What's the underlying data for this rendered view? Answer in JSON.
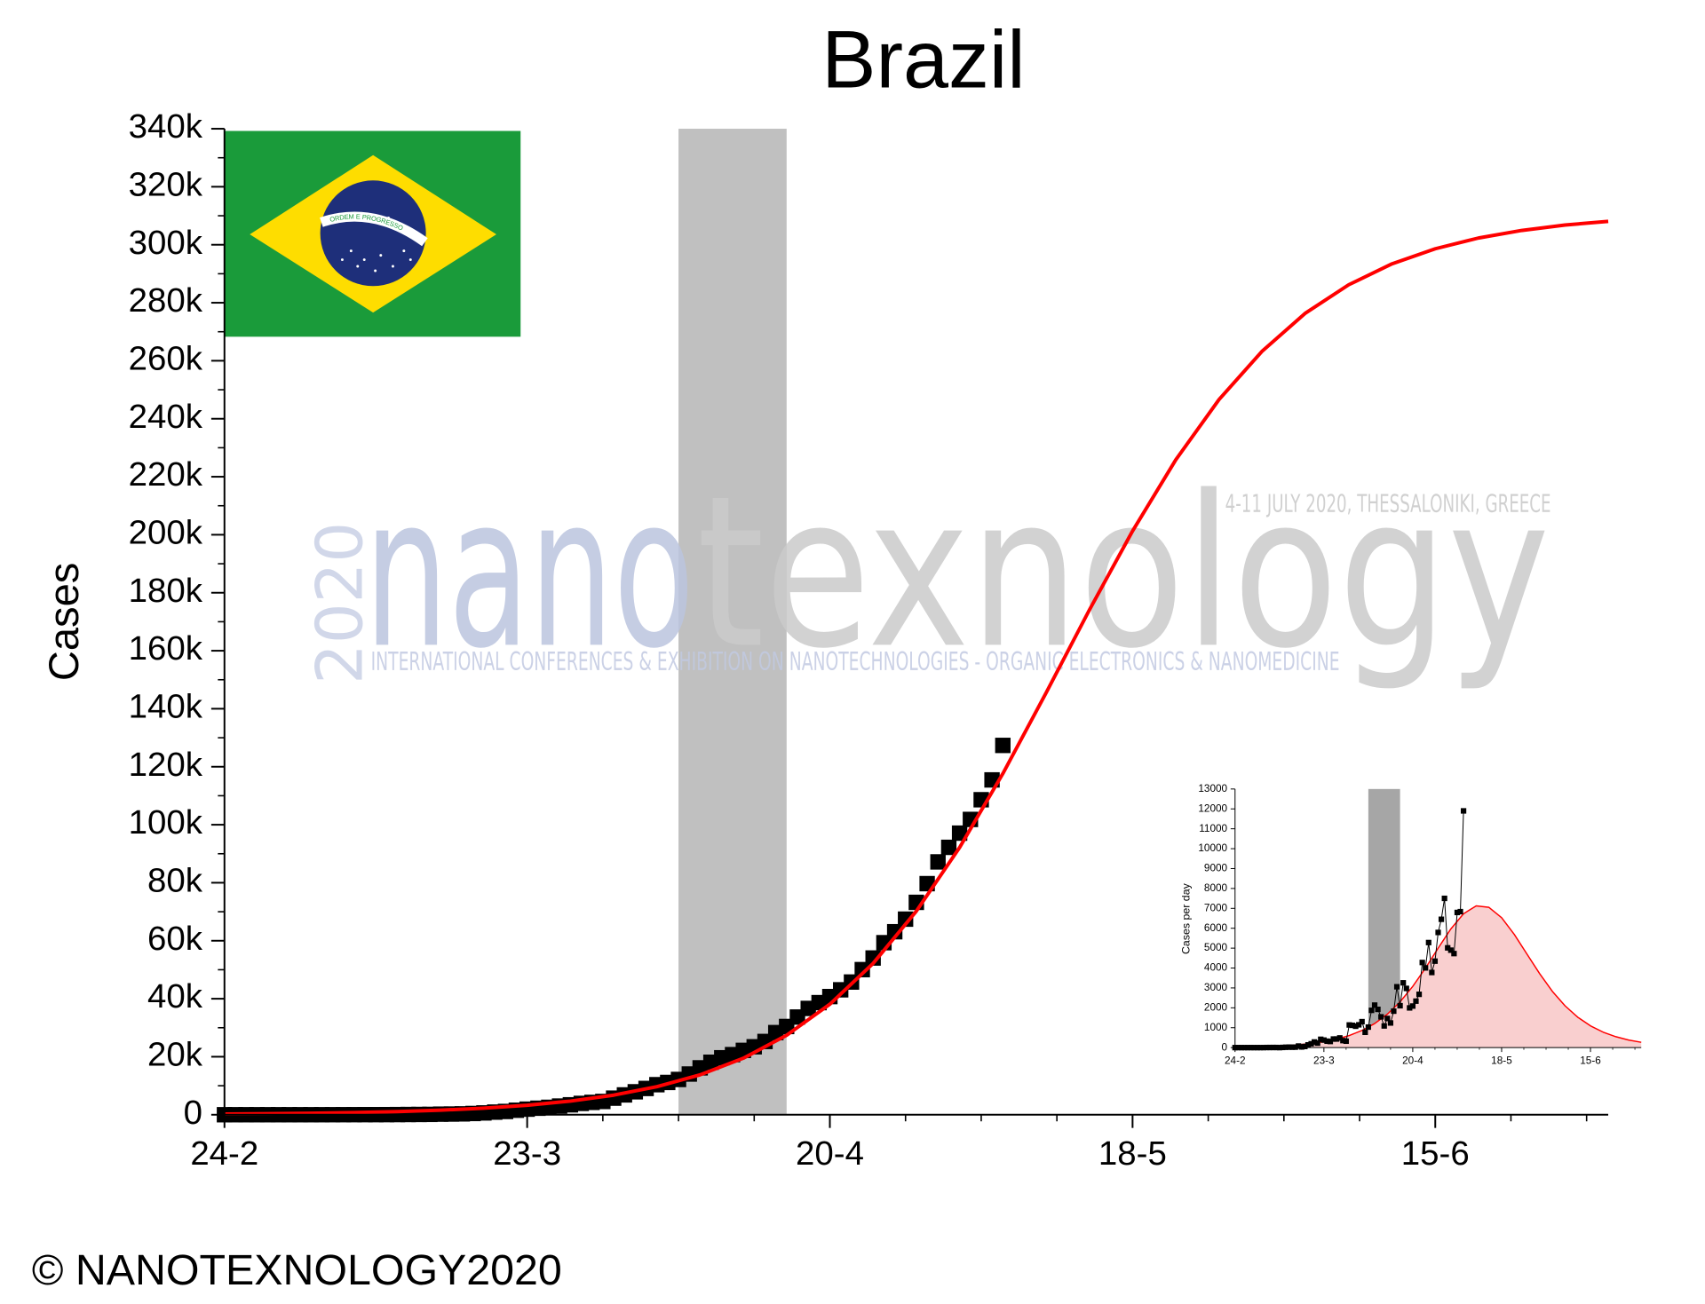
{
  "chart_data": [
    {
      "type": "scatter-fit",
      "title": "Brazil",
      "ylabel": "Cases",
      "xlim": [
        0,
        128
      ],
      "ylim": [
        0,
        340000
      ],
      "xticks": [
        {
          "value": 0,
          "label": "24-2"
        },
        {
          "value": 28,
          "label": "23-3"
        },
        {
          "value": 56,
          "label": "20-4"
        },
        {
          "value": 84,
          "label": "18-5"
        },
        {
          "value": 112,
          "label": "15-6"
        }
      ],
      "xminor": [
        7,
        14,
        21,
        35,
        42,
        49,
        63,
        70,
        77,
        91,
        98,
        105,
        119,
        126
      ],
      "yticks": [
        {
          "value": 0,
          "label": "0"
        },
        {
          "value": 20000,
          "label": "20k"
        },
        {
          "value": 40000,
          "label": "40k"
        },
        {
          "value": 60000,
          "label": "60k"
        },
        {
          "value": 80000,
          "label": "80k"
        },
        {
          "value": 100000,
          "label": "100k"
        },
        {
          "value": 120000,
          "label": "120k"
        },
        {
          "value": 140000,
          "label": "140k"
        },
        {
          "value": 160000,
          "label": "160k"
        },
        {
          "value": 180000,
          "label": "180k"
        },
        {
          "value": 200000,
          "label": "200k"
        },
        {
          "value": 220000,
          "label": "220k"
        },
        {
          "value": 240000,
          "label": "240k"
        },
        {
          "value": 260000,
          "label": "260k"
        },
        {
          "value": 280000,
          "label": "280k"
        },
        {
          "value": 300000,
          "label": "300k"
        },
        {
          "value": 320000,
          "label": "320k"
        },
        {
          "value": 340000,
          "label": "340k"
        }
      ],
      "yminor": [
        10000,
        30000,
        50000,
        70000,
        90000,
        110000,
        130000,
        150000,
        170000,
        190000,
        210000,
        230000,
        250000,
        270000,
        290000,
        310000,
        330000
      ],
      "shaded_range": [
        42,
        52
      ],
      "shade_color": "#c0c0c0",
      "series": [
        {
          "style": "markers",
          "marker": "square",
          "color": "#000000",
          "x": [
            0,
            1,
            2,
            3,
            4,
            5,
            6,
            7,
            8,
            9,
            10,
            11,
            12,
            13,
            14,
            15,
            16,
            17,
            18,
            19,
            20,
            21,
            22,
            23,
            24,
            25,
            26,
            27,
            28,
            29,
            30,
            31,
            32,
            33,
            34,
            35,
            36,
            37,
            38,
            39,
            40,
            41,
            42,
            43,
            44,
            45,
            46,
            47,
            48,
            49,
            50,
            51,
            52,
            53,
            54,
            55,
            56,
            57,
            58,
            59,
            60,
            61,
            62,
            63,
            64,
            65,
            66,
            67,
            68,
            69,
            70,
            71,
            72
          ],
          "values": [
            0,
            1,
            1,
            1,
            1,
            2,
            2,
            2,
            2,
            3,
            8,
            13,
            19,
            25,
            25,
            34,
            52,
            77,
            98,
            121,
            200,
            234,
            291,
            428,
            621,
            904,
            1128,
            1546,
            1924,
            2247,
            2554,
            2985,
            3417,
            3904,
            4256,
            4579,
            5717,
            6836,
            7910,
            9056,
            10360,
            11130,
            12161,
            14034,
            16170,
            18092,
            19638,
            20727,
            22192,
            23430,
            25262,
            28320,
            30425,
            33682,
            36658,
            38654,
            40743,
            43079,
            45757,
            50036,
            54043,
            59324,
            63100,
            67446,
            73235,
            79685,
            87187,
            92202,
            97100,
            101826,
            108620,
            115455,
            127355
          ]
        },
        {
          "style": "line",
          "color": "#ff0000",
          "x": [
            0,
            4,
            8,
            12,
            16,
            20,
            24,
            28,
            32,
            36,
            40,
            44,
            48,
            52,
            56,
            60,
            64,
            68,
            72,
            76,
            80,
            84,
            88,
            92,
            96,
            100,
            104,
            108,
            112,
            116,
            120,
            124,
            128
          ],
          "values": [
            251,
            362,
            524,
            757,
            1091,
            1574,
            2270,
            3267,
            4697,
            6746,
            9664,
            13761,
            19498,
            27401,
            38113,
            52181,
            70203,
            92148,
            117625,
            145463,
            174035,
            201294,
            225853,
            246630,
            263336,
            276444,
            286212,
            293422,
            298608,
            302323,
            304932,
            306797,
            308073
          ]
        }
      ]
    },
    {
      "type": "scatter-fit",
      "ylabel": "Cases per day",
      "xlim": [
        0,
        128
      ],
      "ylim": [
        0,
        13000
      ],
      "xticks": [
        {
          "value": 0,
          "label": "24-2"
        },
        {
          "value": 28,
          "label": "23-3"
        },
        {
          "value": 56,
          "label": "20-4"
        },
        {
          "value": 84,
          "label": "18-5"
        },
        {
          "value": 112,
          "label": "15-6"
        }
      ],
      "xminor": [
        7,
        14,
        21,
        35,
        42,
        49,
        63,
        70,
        77,
        91,
        98,
        105,
        119,
        126
      ],
      "yticks": [
        0,
        1000,
        2000,
        3000,
        4000,
        5000,
        6000,
        7000,
        8000,
        9000,
        10000,
        11000,
        12000,
        13000
      ],
      "yminor": [],
      "shaded_range": [
        42,
        52
      ],
      "shade_color": "#a6a6a6",
      "series": [
        {
          "style": "area",
          "color": "#ff0000",
          "fill": "#f9cfcf",
          "x": [
            0,
            4,
            8,
            12,
            16,
            20,
            24,
            28,
            32,
            36,
            40,
            44,
            48,
            52,
            56,
            60,
            64,
            68,
            72,
            76,
            80,
            84,
            88,
            92,
            96,
            100,
            104,
            108,
            112,
            116,
            120,
            124,
            128
          ],
          "values": [
            23,
            33,
            48,
            70,
            100,
            144,
            207,
            297,
            426,
            607,
            861,
            1210,
            1681,
            2299,
            3077,
            3995,
            5001,
            5966,
            6729,
            7124,
            7051,
            6532,
            5689,
            4697,
            3714,
            2826,
            2099,
            1525,
            1093,
            776,
            547,
            381,
            266
          ]
        },
        {
          "style": "line-markers",
          "marker": "square",
          "color": "#000000",
          "x": [
            0,
            1,
            2,
            3,
            4,
            5,
            6,
            7,
            8,
            9,
            10,
            11,
            12,
            13,
            14,
            15,
            16,
            17,
            18,
            19,
            20,
            21,
            22,
            23,
            24,
            25,
            26,
            27,
            28,
            29,
            30,
            31,
            32,
            33,
            34,
            35,
            36,
            37,
            38,
            39,
            40,
            41,
            42,
            43,
            44,
            45,
            46,
            47,
            48,
            49,
            50,
            51,
            52,
            53,
            54,
            55,
            56,
            57,
            58,
            59,
            60,
            61,
            62,
            63,
            64,
            65,
            66,
            67,
            68,
            69,
            70,
            71,
            72
          ],
          "values": [
            0,
            1,
            0,
            0,
            0,
            1,
            0,
            0,
            0,
            1,
            5,
            5,
            6,
            6,
            0,
            9,
            18,
            25,
            21,
            23,
            79,
            34,
            57,
            137,
            193,
            283,
            224,
            418,
            378,
            323,
            307,
            431,
            432,
            487,
            352,
            323,
            1138,
            1119,
            1074,
            1146,
            1304,
            770,
            1031,
            1873,
            2136,
            1922,
            1546,
            1089,
            1465,
            1238,
            1832,
            3058,
            2105,
            3257,
            2976,
            1996,
            2089,
            2336,
            2678,
            4279,
            4007,
            5281,
            3776,
            4346,
            5789,
            6450,
            7502,
            5015,
            4898,
            4726,
            6794,
            6835,
            11900
          ]
        }
      ]
    }
  ],
  "flag": {
    "motto": "ORDEM E PROGRESSO"
  },
  "watermark": {
    "year": "2020",
    "brand_a": "nano",
    "brand_b": "texnology",
    "dates": "4-11 JULY 2020, THESSALONIKI, GREECE",
    "tagline": "INTERNATIONAL CONFERENCES & EXHIBITION ON NANOTECHNOLOGIES - ORGANIC ELECTRONICS & NANOMEDICINE"
  },
  "copyright": "© NANOTEXNOLOGY2020"
}
